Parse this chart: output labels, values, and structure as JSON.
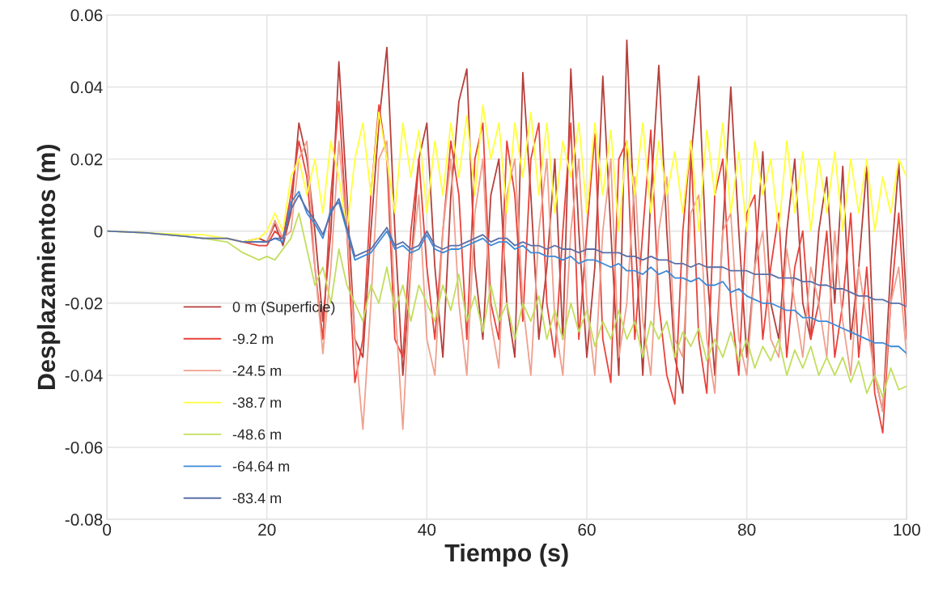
{
  "chart_data": {
    "type": "line",
    "xlabel": "Tiempo (s)",
    "ylabel": "Desplazamientos (m)",
    "xlim": [
      0,
      100
    ],
    "xticks": [
      0,
      20,
      40,
      60,
      80,
      100
    ],
    "ylim": [
      -0.08,
      0.06
    ],
    "yticks": [
      -0.08,
      -0.06,
      -0.04,
      -0.02,
      0,
      0.02,
      0.04,
      0.06
    ],
    "grid": true,
    "legend": "bottom left",
    "marker": "none",
    "line_style": "solid",
    "x": [
      0,
      5,
      10,
      12,
      15,
      17,
      19,
      20,
      21,
      22,
      23,
      24,
      25,
      26,
      27,
      28,
      29,
      30,
      31,
      32,
      33,
      34,
      35,
      36,
      37,
      38,
      39,
      40,
      41,
      42,
      43,
      44,
      45,
      46,
      47,
      48,
      49,
      50,
      51,
      52,
      53,
      54,
      55,
      56,
      57,
      58,
      59,
      60,
      61,
      62,
      63,
      64,
      65,
      66,
      67,
      68,
      69,
      70,
      71,
      72,
      73,
      74,
      75,
      76,
      77,
      78,
      79,
      80,
      81,
      82,
      83,
      84,
      85,
      86,
      87,
      88,
      89,
      90,
      91,
      92,
      93,
      94,
      95,
      96,
      97,
      98,
      99,
      100
    ],
    "series": [
      {
        "name": "0 m (Superficie)",
        "color": "#b5403c",
        "values": [
          null,
          null,
          null,
          null,
          null,
          -0.003,
          -0.002,
          -0.003,
          0.002,
          -0.004,
          0.005,
          0.03,
          0.02,
          0.0,
          -0.025,
          0.0,
          0.047,
          0.01,
          -0.03,
          -0.035,
          0.0,
          0.03,
          0.051,
          0.0,
          -0.04,
          -0.01,
          0.02,
          0.03,
          -0.01,
          -0.035,
          0.01,
          0.036,
          0.045,
          -0.01,
          -0.03,
          0.01,
          0.02,
          -0.02,
          -0.035,
          0.044,
          0.01,
          -0.03,
          -0.01,
          0.02,
          -0.03,
          0.045,
          0.0,
          -0.035,
          -0.01,
          0.043,
          0.0,
          -0.04,
          0.053,
          0.0,
          -0.04,
          0.01,
          0.046,
          0.0,
          -0.035,
          -0.045,
          0.02,
          0.043,
          -0.01,
          -0.04,
          0.0,
          0.04,
          0.0,
          -0.035,
          -0.01,
          0.022,
          -0.02,
          -0.03,
          0.0,
          0.02,
          -0.02,
          -0.03,
          0.0,
          0.015,
          -0.02,
          0.018,
          -0.03,
          -0.01,
          0.018,
          -0.04,
          -0.05,
          -0.01,
          0.019,
          -0.021
        ]
      },
      {
        "name": "-9.2 m",
        "color": "#e8423b",
        "values": [
          null,
          null,
          null,
          null,
          -0.002,
          -0.003,
          -0.004,
          -0.004,
          0.0,
          -0.002,
          0.01,
          0.025,
          0.015,
          -0.01,
          -0.03,
          0.01,
          0.036,
          0.0,
          -0.042,
          -0.03,
          0.01,
          0.035,
          0.02,
          -0.03,
          -0.035,
          0.0,
          0.02,
          -0.01,
          -0.03,
          0.0,
          0.025,
          0.01,
          -0.03,
          0.02,
          0.03,
          -0.02,
          -0.03,
          0.025,
          0.01,
          -0.025,
          0.02,
          0.03,
          -0.02,
          -0.035,
          0.0,
          0.03,
          -0.03,
          0.0,
          0.027,
          -0.03,
          -0.042,
          0.02,
          0.025,
          -0.03,
          0.0,
          0.028,
          -0.02,
          -0.04,
          -0.048,
          0.0,
          0.025,
          -0.03,
          -0.045,
          0.01,
          0.02,
          -0.02,
          -0.04,
          0.005,
          0.01,
          -0.03,
          -0.01,
          0.005,
          -0.035,
          -0.01,
          0.0,
          -0.03,
          -0.02,
          0.0,
          -0.035,
          -0.02,
          0.005,
          -0.035,
          -0.01,
          -0.045,
          -0.056,
          -0.02,
          0.005,
          -0.03
        ]
      },
      {
        "name": "-24.5 m",
        "color": "#f0a08e",
        "values": [
          0,
          -0.0005,
          -0.0015,
          -0.002,
          -0.002,
          -0.003,
          -0.003,
          -0.003,
          0.003,
          -0.002,
          0.0,
          0.02,
          0.025,
          -0.01,
          -0.034,
          -0.01,
          0.025,
          0.0,
          -0.03,
          -0.055,
          -0.02,
          0.02,
          0.025,
          -0.02,
          -0.055,
          -0.01,
          0.01,
          -0.03,
          -0.04,
          0.0,
          0.02,
          -0.02,
          -0.04,
          0.005,
          0.02,
          -0.025,
          -0.038,
          0.01,
          0.02,
          -0.02,
          -0.04,
          0.0,
          0.02,
          -0.025,
          -0.04,
          0.0,
          0.02,
          -0.02,
          -0.04,
          0.0,
          0.02,
          -0.035,
          -0.02,
          0.015,
          -0.025,
          -0.04,
          0.0,
          0.015,
          -0.03,
          -0.035,
          0.005,
          0.01,
          -0.03,
          -0.045,
          0.0,
          0.005,
          -0.03,
          -0.04,
          -0.01,
          0.0,
          -0.03,
          -0.035,
          -0.005,
          -0.02,
          -0.035,
          -0.01,
          -0.02,
          -0.035,
          0.0,
          -0.025,
          -0.04,
          -0.01,
          -0.025,
          -0.04,
          -0.05,
          -0.02,
          -0.01,
          -0.035
        ]
      },
      {
        "name": "-38.7 m",
        "color": "#ffff3c",
        "values": [
          0,
          -0.0005,
          -0.001,
          -0.001,
          -0.002,
          -0.003,
          -0.002,
          0.0,
          0.005,
          0.0,
          0.015,
          0.02,
          0.01,
          0.02,
          0.005,
          0.025,
          0.015,
          0.0,
          0.02,
          0.03,
          0.01,
          0.033,
          0.02,
          0.005,
          0.03,
          0.015,
          0.028,
          0.005,
          0.025,
          0.01,
          0.03,
          0.015,
          0.032,
          0.01,
          0.035,
          0.02,
          0.03,
          0.005,
          0.03,
          0.015,
          0.033,
          0.01,
          0.03,
          0.005,
          0.025,
          0.015,
          0.03,
          0.005,
          0.03,
          0.01,
          0.028,
          0.0,
          0.025,
          0.01,
          0.03,
          0.005,
          0.025,
          0.01,
          0.022,
          0.005,
          0.025,
          0.0,
          0.028,
          0.01,
          0.03,
          0.005,
          0.022,
          0.0,
          0.025,
          0.01,
          0.02,
          0.0,
          0.025,
          0.005,
          0.022,
          0.0,
          0.02,
          0.005,
          0.022,
          0.0,
          0.02,
          0.005,
          0.02,
          0.0,
          0.015,
          0.005,
          0.02,
          0.015
        ]
      },
      {
        "name": "-48.6 m",
        "color": "#c2de5e",
        "values": [
          0,
          -0.0005,
          -0.0015,
          -0.002,
          -0.003,
          -0.006,
          -0.008,
          -0.007,
          -0.008,
          -0.005,
          -0.002,
          0.005,
          -0.005,
          -0.015,
          -0.01,
          -0.02,
          -0.005,
          -0.015,
          -0.02,
          -0.025,
          -0.015,
          -0.02,
          -0.01,
          -0.022,
          -0.015,
          -0.025,
          -0.015,
          -0.02,
          -0.025,
          -0.015,
          -0.022,
          -0.012,
          -0.025,
          -0.018,
          -0.028,
          -0.015,
          -0.025,
          -0.02,
          -0.03,
          -0.02,
          -0.025,
          -0.018,
          -0.03,
          -0.022,
          -0.03,
          -0.02,
          -0.028,
          -0.022,
          -0.032,
          -0.025,
          -0.03,
          -0.022,
          -0.03,
          -0.025,
          -0.035,
          -0.025,
          -0.03,
          -0.025,
          -0.035,
          -0.028,
          -0.032,
          -0.027,
          -0.036,
          -0.03,
          -0.035,
          -0.028,
          -0.036,
          -0.03,
          -0.038,
          -0.032,
          -0.036,
          -0.03,
          -0.04,
          -0.033,
          -0.038,
          -0.032,
          -0.04,
          -0.035,
          -0.04,
          -0.035,
          -0.042,
          -0.036,
          -0.045,
          -0.04,
          -0.046,
          -0.038,
          -0.044,
          -0.043
        ]
      },
      {
        "name": "-64.64 m",
        "color": "#3d8ad8",
        "values": [
          null,
          null,
          null,
          null,
          null,
          -0.003,
          -0.003,
          -0.003,
          -0.002,
          -0.003,
          0.008,
          0.011,
          0.005,
          0.002,
          -0.002,
          0.006,
          0.008,
          0.0,
          -0.008,
          -0.007,
          -0.006,
          -0.003,
          0.0,
          -0.005,
          -0.004,
          -0.006,
          -0.005,
          -0.001,
          -0.005,
          -0.006,
          -0.005,
          -0.005,
          -0.004,
          -0.003,
          -0.002,
          -0.004,
          -0.003,
          -0.003,
          -0.005,
          -0.004,
          -0.006,
          -0.006,
          -0.007,
          -0.007,
          -0.008,
          -0.007,
          -0.009,
          -0.008,
          -0.008,
          -0.009,
          -0.01,
          -0.009,
          -0.011,
          -0.011,
          -0.012,
          -0.01,
          -0.012,
          -0.011,
          -0.013,
          -0.013,
          -0.014,
          -0.013,
          -0.015,
          -0.015,
          -0.014,
          -0.017,
          -0.016,
          -0.018,
          -0.019,
          -0.02,
          -0.02,
          -0.021,
          -0.022,
          -0.022,
          -0.024,
          -0.024,
          -0.025,
          -0.025,
          -0.026,
          -0.027,
          -0.028,
          -0.029,
          -0.03,
          -0.031,
          -0.031,
          -0.032,
          -0.032,
          -0.034
        ]
      },
      {
        "name": "-83.4 m",
        "color": "#5a6fa8",
        "values": [
          0,
          -0.0005,
          -0.0015,
          -0.002,
          -0.002,
          -0.003,
          -0.003,
          -0.003,
          -0.002,
          -0.002,
          0.006,
          0.01,
          0.006,
          0.003,
          -0.001,
          0.005,
          0.009,
          0.001,
          -0.007,
          -0.006,
          -0.005,
          -0.002,
          0.001,
          -0.004,
          -0.003,
          -0.005,
          -0.004,
          0.0,
          -0.004,
          -0.005,
          -0.004,
          -0.004,
          -0.003,
          -0.002,
          -0.001,
          -0.003,
          -0.002,
          -0.002,
          -0.004,
          -0.003,
          -0.004,
          -0.004,
          -0.005,
          -0.004,
          -0.005,
          -0.005,
          -0.006,
          -0.005,
          -0.005,
          -0.006,
          -0.006,
          -0.006,
          -0.007,
          -0.007,
          -0.008,
          -0.007,
          -0.008,
          -0.008,
          -0.009,
          -0.009,
          -0.01,
          -0.009,
          -0.01,
          -0.01,
          -0.01,
          -0.011,
          -0.011,
          -0.011,
          -0.012,
          -0.012,
          -0.012,
          -0.013,
          -0.013,
          -0.013,
          -0.014,
          -0.014,
          -0.015,
          -0.015,
          -0.016,
          -0.016,
          -0.017,
          -0.018,
          -0.018,
          -0.019,
          -0.019,
          -0.02,
          -0.02,
          -0.021
        ]
      }
    ]
  }
}
